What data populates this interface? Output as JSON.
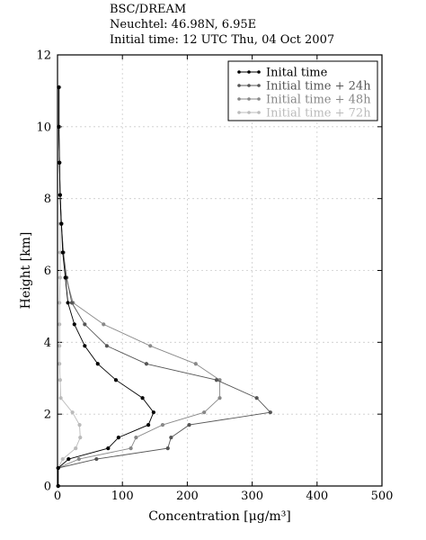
{
  "header": {
    "line1": "BSC/DREAM",
    "line2": "Neuchtel: 46.98N, 6.95E",
    "line3": "Initial time: 12 UTC Thu, 04 Oct 2007"
  },
  "chart_data": {
    "type": "line",
    "xlabel": "Concentration [μg/m³]",
    "ylabel": "Height [km]",
    "xlim": [
      0,
      500
    ],
    "ylim": [
      0,
      12
    ],
    "xticks": [
      0,
      100,
      200,
      300,
      400,
      500
    ],
    "yticks": [
      0,
      2,
      4,
      6,
      8,
      10,
      12
    ],
    "grid": true,
    "legend_position": "top-right",
    "series": [
      {
        "name": "Inital time",
        "color": "#000000",
        "points": [
          [
            1,
            0
          ],
          [
            1,
            0.5
          ],
          [
            17,
            0.75
          ],
          [
            78,
            1.05
          ],
          [
            94,
            1.35
          ],
          [
            140,
            1.7
          ],
          [
            148,
            2.05
          ],
          [
            131,
            2.45
          ],
          [
            90,
            2.95
          ],
          [
            62,
            3.4
          ],
          [
            42,
            3.9
          ],
          [
            26,
            4.5
          ],
          [
            16,
            5.1
          ],
          [
            12,
            5.8
          ],
          [
            8,
            6.5
          ],
          [
            6,
            7.3
          ],
          [
            4,
            8.1
          ],
          [
            3,
            9.0
          ],
          [
            2,
            10.0
          ],
          [
            2,
            11.1
          ]
        ]
      },
      {
        "name": "Initial time + 24h",
        "color": "#555555",
        "points": [
          [
            1,
            0
          ],
          [
            1,
            0.5
          ],
          [
            60,
            0.75
          ],
          [
            170,
            1.05
          ],
          [
            175,
            1.35
          ],
          [
            203,
            1.7
          ],
          [
            328,
            2.05
          ],
          [
            307,
            2.45
          ],
          [
            245,
            2.95
          ],
          [
            137,
            3.4
          ],
          [
            76,
            3.9
          ],
          [
            42,
            4.5
          ],
          [
            22,
            5.1
          ],
          [
            14,
            5.8
          ],
          [
            9,
            6.5
          ],
          [
            6,
            7.3
          ],
          [
            4,
            8.1
          ],
          [
            3,
            9.0
          ],
          [
            2,
            10.0
          ],
          [
            2,
            11.1
          ]
        ]
      },
      {
        "name": "Initial time + 48h",
        "color": "#888888",
        "points": [
          [
            1,
            0
          ],
          [
            1,
            0.5
          ],
          [
            33,
            0.75
          ],
          [
            113,
            1.05
          ],
          [
            121,
            1.35
          ],
          [
            162,
            1.7
          ],
          [
            226,
            2.05
          ],
          [
            250,
            2.45
          ],
          [
            250,
            2.95
          ],
          [
            213,
            3.4
          ],
          [
            143,
            3.9
          ],
          [
            71,
            4.5
          ],
          [
            24,
            5.1
          ],
          [
            13,
            5.8
          ],
          [
            9,
            6.5
          ],
          [
            6,
            7.3
          ],
          [
            4,
            8.1
          ],
          [
            3,
            9.0
          ],
          [
            2,
            10.0
          ],
          [
            2,
            11.1
          ]
        ]
      },
      {
        "name": "Initial time + 72h",
        "color": "#bbbbbb",
        "points": [
          [
            1,
            0
          ],
          [
            1,
            0.5
          ],
          [
            8,
            0.75
          ],
          [
            28,
            1.05
          ],
          [
            35,
            1.35
          ],
          [
            34,
            1.7
          ],
          [
            23,
            2.05
          ],
          [
            5,
            2.45
          ],
          [
            4,
            2.95
          ],
          [
            3,
            3.4
          ],
          [
            3,
            3.9
          ],
          [
            3,
            4.5
          ],
          [
            3,
            5.1
          ],
          [
            4,
            5.8
          ],
          [
            4,
            6.5
          ],
          [
            4,
            7.3
          ],
          [
            4,
            8.1
          ],
          [
            3,
            9.0
          ],
          [
            3,
            10.0
          ],
          [
            3,
            11.1
          ]
        ]
      }
    ]
  }
}
